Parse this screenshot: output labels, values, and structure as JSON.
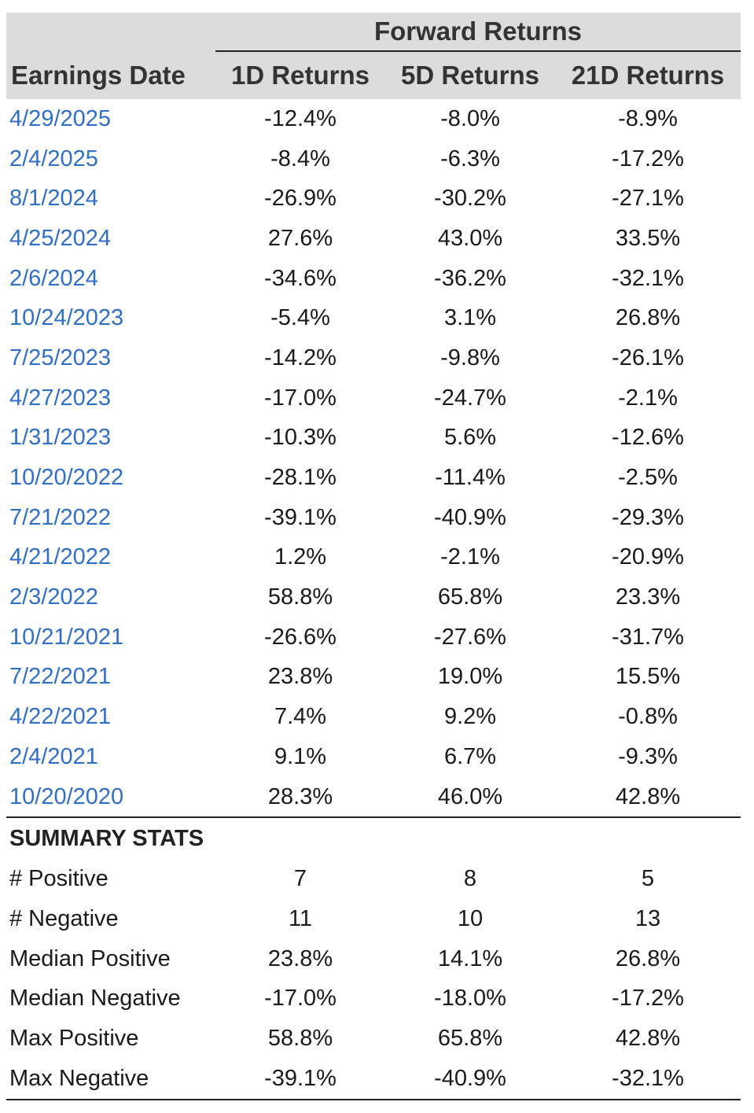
{
  "header": {
    "group_label": "Forward Returns",
    "columns": [
      "Earnings Date",
      "1D Returns",
      "5D Returns",
      "21D Returns"
    ]
  },
  "rows": [
    {
      "date": "4/29/2025",
      "d1": "-12.4%",
      "d5": "-8.0%",
      "d21": "-8.9%"
    },
    {
      "date": "2/4/2025",
      "d1": "-8.4%",
      "d5": "-6.3%",
      "d21": "-17.2%"
    },
    {
      "date": "8/1/2024",
      "d1": "-26.9%",
      "d5": "-30.2%",
      "d21": "-27.1%"
    },
    {
      "date": "4/25/2024",
      "d1": "27.6%",
      "d5": "43.0%",
      "d21": "33.5%"
    },
    {
      "date": "2/6/2024",
      "d1": "-34.6%",
      "d5": "-36.2%",
      "d21": "-32.1%"
    },
    {
      "date": "10/24/2023",
      "d1": "-5.4%",
      "d5": "3.1%",
      "d21": "26.8%"
    },
    {
      "date": "7/25/2023",
      "d1": "-14.2%",
      "d5": "-9.8%",
      "d21": "-26.1%"
    },
    {
      "date": "4/27/2023",
      "d1": "-17.0%",
      "d5": "-24.7%",
      "d21": "-2.1%"
    },
    {
      "date": "1/31/2023",
      "d1": "-10.3%",
      "d5": "5.6%",
      "d21": "-12.6%"
    },
    {
      "date": "10/20/2022",
      "d1": "-28.1%",
      "d5": "-11.4%",
      "d21": "-2.5%"
    },
    {
      "date": "7/21/2022",
      "d1": "-39.1%",
      "d5": "-40.9%",
      "d21": "-29.3%"
    },
    {
      "date": "4/21/2022",
      "d1": "1.2%",
      "d5": "-2.1%",
      "d21": "-20.9%"
    },
    {
      "date": "2/3/2022",
      "d1": "58.8%",
      "d5": "65.8%",
      "d21": "23.3%"
    },
    {
      "date": "10/21/2021",
      "d1": "-26.6%",
      "d5": "-27.6%",
      "d21": "-31.7%"
    },
    {
      "date": "7/22/2021",
      "d1": "23.8%",
      "d5": "19.0%",
      "d21": "15.5%"
    },
    {
      "date": "4/22/2021",
      "d1": "7.4%",
      "d5": "9.2%",
      "d21": "-0.8%"
    },
    {
      "date": "2/4/2021",
      "d1": "9.1%",
      "d5": "6.7%",
      "d21": "-9.3%"
    },
    {
      "date": "10/20/2020",
      "d1": "28.3%",
      "d5": "46.0%",
      "d21": "42.8%"
    }
  ],
  "summary": {
    "title": "SUMMARY STATS",
    "stats": [
      {
        "label": "# Positive",
        "d1": "7",
        "d5": "8",
        "d21": "5"
      },
      {
        "label": "# Negative",
        "d1": "11",
        "d5": "10",
        "d21": "13"
      },
      {
        "label": "Median Positive",
        "d1": "23.8%",
        "d5": "14.1%",
        "d21": "26.8%"
      },
      {
        "label": "Median Negative",
        "d1": "-17.0%",
        "d5": "-18.0%",
        "d21": "-17.2%"
      },
      {
        "label": "Max Positive",
        "d1": "58.8%",
        "d5": "65.8%",
        "d21": "42.8%"
      },
      {
        "label": "Max Negative",
        "d1": "-39.1%",
        "d5": "-40.9%",
        "d21": "-32.1%"
      }
    ]
  },
  "colors": {
    "header_bg": "#dcdcdc",
    "date_link": "#2f6fca",
    "rule": "#222222"
  }
}
